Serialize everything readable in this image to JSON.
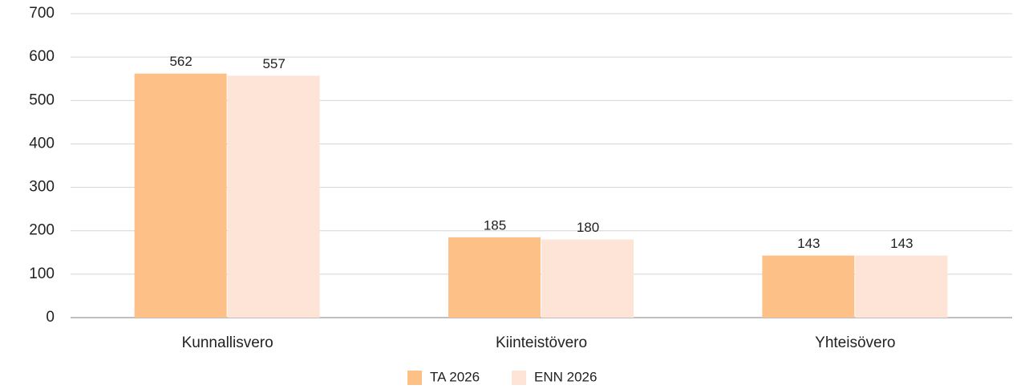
{
  "chart_data": {
    "type": "bar",
    "categories": [
      "Kunnallisvero",
      "Kiinteistövero",
      "Yhteisövero"
    ],
    "series": [
      {
        "name": "TA 2026",
        "color": "#fdc187",
        "values": [
          562,
          185,
          143
        ]
      },
      {
        "name": "ENN 2026",
        "color": "#fde4d6",
        "values": [
          557,
          180,
          143
        ]
      }
    ],
    "ylim": [
      0,
      700
    ],
    "yticks": [
      0,
      100,
      200,
      300,
      400,
      500,
      600,
      700
    ],
    "grid": true,
    "legend": "bottom"
  }
}
